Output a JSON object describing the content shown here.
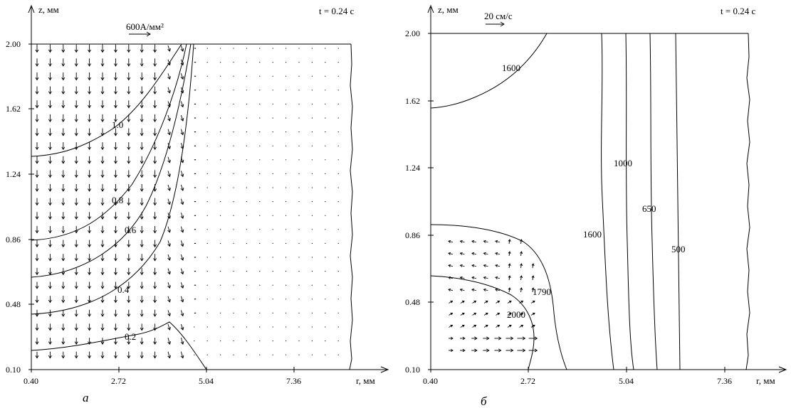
{
  "panel_a": {
    "z_label": "z, мм",
    "r_label": "r, мм",
    "time": "t = 0.24 с",
    "scale_label": "600А/мм²",
    "caption": "а",
    "z_ticks": [
      "2.00",
      "1.62",
      "1.24",
      "0.86",
      "0.48",
      "0.10"
    ],
    "r_ticks": [
      "0.40",
      "2.72",
      "5.04",
      "7.36"
    ],
    "contour_labels": [
      "1.0",
      "0.8",
      "0.6",
      "0.4",
      "0.2"
    ]
  },
  "panel_b": {
    "z_label": "z, мм",
    "r_label": "r, мм",
    "time": "t = 0.24 с",
    "scale_label": "20 см/с",
    "caption": "б",
    "z_ticks": [
      "2.00",
      "1.62",
      "1.24",
      "0.86",
      "0.48",
      "0.10"
    ],
    "r_ticks": [
      "0.40",
      "2.72",
      "5.04",
      "7.36"
    ],
    "contour_labels": [
      "1600",
      "1000",
      "650",
      "500",
      "1600",
      "1790",
      "2000"
    ]
  }
}
